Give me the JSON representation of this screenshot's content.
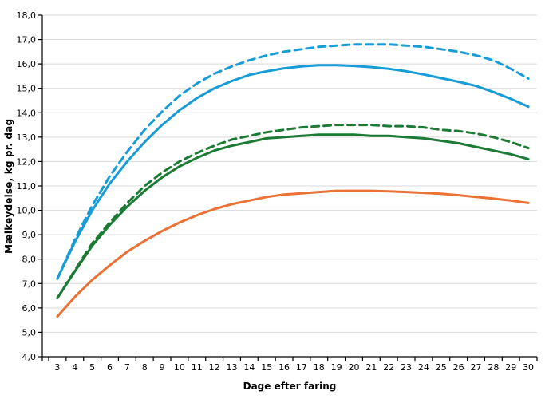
{
  "chart_data": {
    "type": "line",
    "title": "",
    "xlabel": "Dage efter faring",
    "ylabel": "Mælkeydelse, kg pr. dag",
    "x": [
      3,
      4,
      5,
      6,
      7,
      8,
      9,
      10,
      11,
      12,
      13,
      14,
      15,
      16,
      17,
      18,
      19,
      20,
      21,
      22,
      23,
      24,
      25,
      26,
      27,
      28,
      29,
      30
    ],
    "x_tick_labels": [
      "3",
      "4",
      "5",
      "6",
      "7",
      "8",
      "9",
      "10",
      "11",
      "12",
      "13",
      "14",
      "15",
      "16",
      "17",
      "18",
      "19",
      "20",
      "21",
      "22",
      "23",
      "24",
      "25",
      "26",
      "27",
      "28",
      "29",
      "30"
    ],
    "y_ticks": [
      4,
      5,
      6,
      7,
      8,
      9,
      10,
      11,
      12,
      13,
      14,
      15,
      16,
      17,
      18
    ],
    "y_tick_labels": [
      "4,0",
      "5,0",
      "6,0",
      "7,0",
      "8,0",
      "9,0",
      "10,0",
      "11,0",
      "12,0",
      "13,0",
      "14,0",
      "15,0",
      "16,0",
      "17,0",
      "18,0"
    ],
    "ylim": [
      4,
      18
    ],
    "xlim_days": [
      2.5,
      30.5
    ],
    "grid": "horizontal-only",
    "legend_position": "none",
    "colors": {
      "axis": "#000000",
      "grid": "#d9d9d9",
      "blue": "#189cd8",
      "green": "#1b7a33",
      "orange": "#eb7134"
    },
    "series": [
      {
        "name": "blue-solid",
        "color": "#189cd8",
        "line_style": "solid",
        "values": [
          7.2,
          8.7,
          10.0,
          11.1,
          12.0,
          12.8,
          13.5,
          14.1,
          14.6,
          15.0,
          15.3,
          15.55,
          15.7,
          15.82,
          15.9,
          15.95,
          15.95,
          15.92,
          15.87,
          15.8,
          15.7,
          15.57,
          15.42,
          15.27,
          15.1,
          14.85,
          14.57,
          14.25
        ]
      },
      {
        "name": "blue-dashed",
        "color": "#189cd8",
        "line_style": "dashed",
        "values": [
          7.2,
          8.8,
          10.2,
          11.4,
          12.4,
          13.3,
          14.05,
          14.7,
          15.2,
          15.6,
          15.9,
          16.15,
          16.35,
          16.5,
          16.6,
          16.7,
          16.75,
          16.8,
          16.8,
          16.8,
          16.75,
          16.7,
          16.6,
          16.5,
          16.35,
          16.15,
          15.8,
          15.4
        ]
      },
      {
        "name": "green-solid",
        "color": "#1b7a33",
        "line_style": "solid",
        "values": [
          6.4,
          7.5,
          8.55,
          9.4,
          10.15,
          10.8,
          11.35,
          11.8,
          12.15,
          12.45,
          12.65,
          12.8,
          12.95,
          13.0,
          13.05,
          13.1,
          13.1,
          13.1,
          13.05,
          13.05,
          13.0,
          12.95,
          12.85,
          12.75,
          12.6,
          12.45,
          12.3,
          12.1
        ]
      },
      {
        "name": "green-dashed",
        "color": "#1b7a33",
        "line_style": "dashed",
        "values": [
          6.4,
          7.55,
          8.65,
          9.5,
          10.3,
          11.0,
          11.55,
          12.0,
          12.35,
          12.65,
          12.9,
          13.05,
          13.2,
          13.3,
          13.4,
          13.45,
          13.5,
          13.5,
          13.5,
          13.45,
          13.45,
          13.4,
          13.3,
          13.25,
          13.15,
          13.0,
          12.8,
          12.55
        ]
      },
      {
        "name": "orange-solid",
        "color": "#eb7134",
        "line_style": "solid",
        "values": [
          5.65,
          6.45,
          7.15,
          7.75,
          8.3,
          8.75,
          9.15,
          9.5,
          9.8,
          10.05,
          10.25,
          10.4,
          10.55,
          10.65,
          10.7,
          10.75,
          10.8,
          10.8,
          10.8,
          10.78,
          10.75,
          10.72,
          10.68,
          10.62,
          10.55,
          10.48,
          10.4,
          10.3
        ]
      }
    ]
  }
}
